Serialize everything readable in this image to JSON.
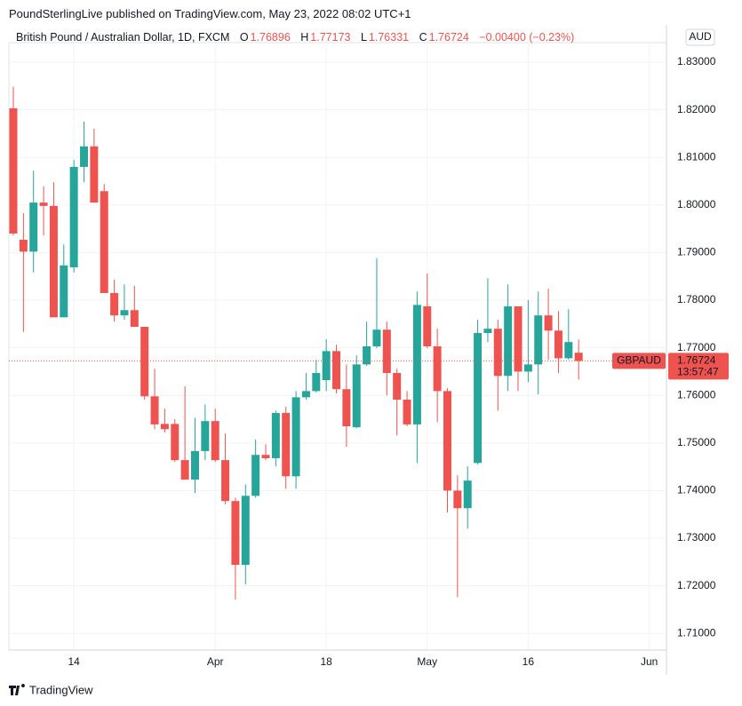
{
  "chart_data": {
    "type": "candlestick",
    "title": "PoundSterlingLive published on TradingView.com, May 23, 2022 08:02 UTC+1",
    "subtitle": "British Pound / Australian Dollar, 1D, FXCM",
    "ohlc_labels": [
      "O",
      "H",
      "L",
      "C"
    ],
    "change_label": "−0.00400 (−0.23%)",
    "currency": "AUD",
    "symbol": "GBPAUD",
    "countdown": "13:57:47",
    "brand": "TradingView",
    "up_color": "#26a69a",
    "down_color": "#ef5350",
    "open": [
      1.8203,
      1.7927,
      1.7902,
      1.8005,
      1.7998,
      1.7764,
      1.7869,
      1.808,
      1.8123,
      1.8029,
      1.7815,
      1.7768,
      1.7779,
      1.7744,
      1.7598,
      1.754,
      1.754,
      1.7464,
      1.7423,
      1.7483,
      1.7546,
      1.7464,
      1.7378,
      1.7244,
      1.7389,
      1.7475,
      1.7468,
      1.7563,
      1.743,
      1.7596,
      1.7609,
      1.7632,
      1.7693,
      1.7613,
      1.7533,
      1.7665,
      1.7703,
      1.7738,
      1.7647,
      1.7591,
      1.7539,
      1.7787,
      1.7703,
      1.7609,
      1.74,
      1.7363,
      1.7458,
      1.7731,
      1.774,
      1.7641,
      1.7787,
      1.765,
      1.7665,
      1.7768,
      1.7736,
      1.7678,
      1.76896
    ],
    "high": [
      1.8248,
      1.7983,
      1.8072,
      1.8039,
      1.8048,
      1.7917,
      1.8095,
      1.8175,
      1.816,
      1.8044,
      1.7843,
      1.7833,
      1.783,
      1.7744,
      1.7656,
      1.7572,
      1.755,
      1.7619,
      1.7553,
      1.7581,
      1.7572,
      1.752,
      1.7385,
      1.7413,
      1.7507,
      1.7497,
      1.7568,
      1.7576,
      1.7609,
      1.7647,
      1.7675,
      1.7718,
      1.7706,
      1.7665,
      1.7684,
      1.7755,
      1.7888,
      1.7755,
      1.7656,
      1.7609,
      1.7818,
      1.7856,
      1.774,
      1.7615,
      1.7432,
      1.7451,
      1.7759,
      1.7846,
      1.7759,
      1.7833,
      1.7787,
      1.78,
      1.7818,
      1.7824,
      1.7777,
      1.7781,
      1.77173
    ],
    "low": [
      1.7936,
      1.7733,
      1.7858,
      1.7936,
      1.7764,
      1.7764,
      1.7858,
      1.8048,
      1.8005,
      1.7815,
      1.7755,
      1.7759,
      1.7744,
      1.7591,
      1.7529,
      1.7522,
      1.746,
      1.7423,
      1.7395,
      1.7464,
      1.746,
      1.7371,
      1.7171,
      1.7203,
      1.7385,
      1.7464,
      1.7451,
      1.7404,
      1.7404,
      1.7591,
      1.7606,
      1.7609,
      1.7604,
      1.7492,
      1.7531,
      1.7662,
      1.7699,
      1.76,
      1.7516,
      1.7535,
      1.7458,
      1.7699,
      1.7544,
      1.7354,
      1.7176,
      1.732,
      1.7455,
      1.7712,
      1.7568,
      1.7609,
      1.7609,
      1.7628,
      1.7602,
      1.7675,
      1.7647,
      1.7675,
      1.76331
    ],
    "close": [
      1.794,
      1.7902,
      1.8005,
      1.7998,
      1.7764,
      1.7873,
      1.808,
      1.8123,
      1.8005,
      1.7815,
      1.7768,
      1.7779,
      1.7744,
      1.7598,
      1.7539,
      1.7529,
      1.7464,
      1.7423,
      1.7483,
      1.7546,
      1.7464,
      1.7378,
      1.7244,
      1.7389,
      1.7475,
      1.7468,
      1.7563,
      1.743,
      1.7596,
      1.7609,
      1.7647,
      1.7693,
      1.7613,
      1.7535,
      1.7665,
      1.7703,
      1.7738,
      1.7647,
      1.7591,
      1.7539,
      1.779,
      1.7703,
      1.7609,
      1.74,
      1.7363,
      1.7421,
      1.7731,
      1.774,
      1.7641,
      1.7787,
      1.765,
      1.7665,
      1.7768,
      1.7736,
      1.7678,
      1.7712,
      1.76724
    ],
    "xlim": [
      -0.44,
      64.7
    ],
    "xticks": [
      {
        "value": 6,
        "label": "14"
      },
      {
        "value": 20,
        "label": "Apr"
      },
      {
        "value": 31,
        "label": "18"
      },
      {
        "value": 41,
        "label": "May"
      },
      {
        "value": 51,
        "label": "16"
      },
      {
        "value": 63,
        "label": "Jun"
      }
    ],
    "ylim": [
      1.7065,
      1.8341
    ],
    "yticks": [
      {
        "value": 1.71,
        "label": "1.71000"
      },
      {
        "value": 1.72,
        "label": "1.72000"
      },
      {
        "value": 1.73,
        "label": "1.73000"
      },
      {
        "value": 1.74,
        "label": "1.74000"
      },
      {
        "value": 1.75,
        "label": "1.75000"
      },
      {
        "value": 1.76,
        "label": "1.76000"
      },
      {
        "value": 1.77,
        "label": "1.77000"
      },
      {
        "value": 1.78,
        "label": "1.78000"
      },
      {
        "value": 1.79,
        "label": "1.79000"
      },
      {
        "value": 1.8,
        "label": "1.80000"
      },
      {
        "value": 1.81,
        "label": "1.81000"
      },
      {
        "value": 1.82,
        "label": "1.82000"
      },
      {
        "value": 1.83,
        "label": "1.83000"
      }
    ],
    "grid": true
  }
}
